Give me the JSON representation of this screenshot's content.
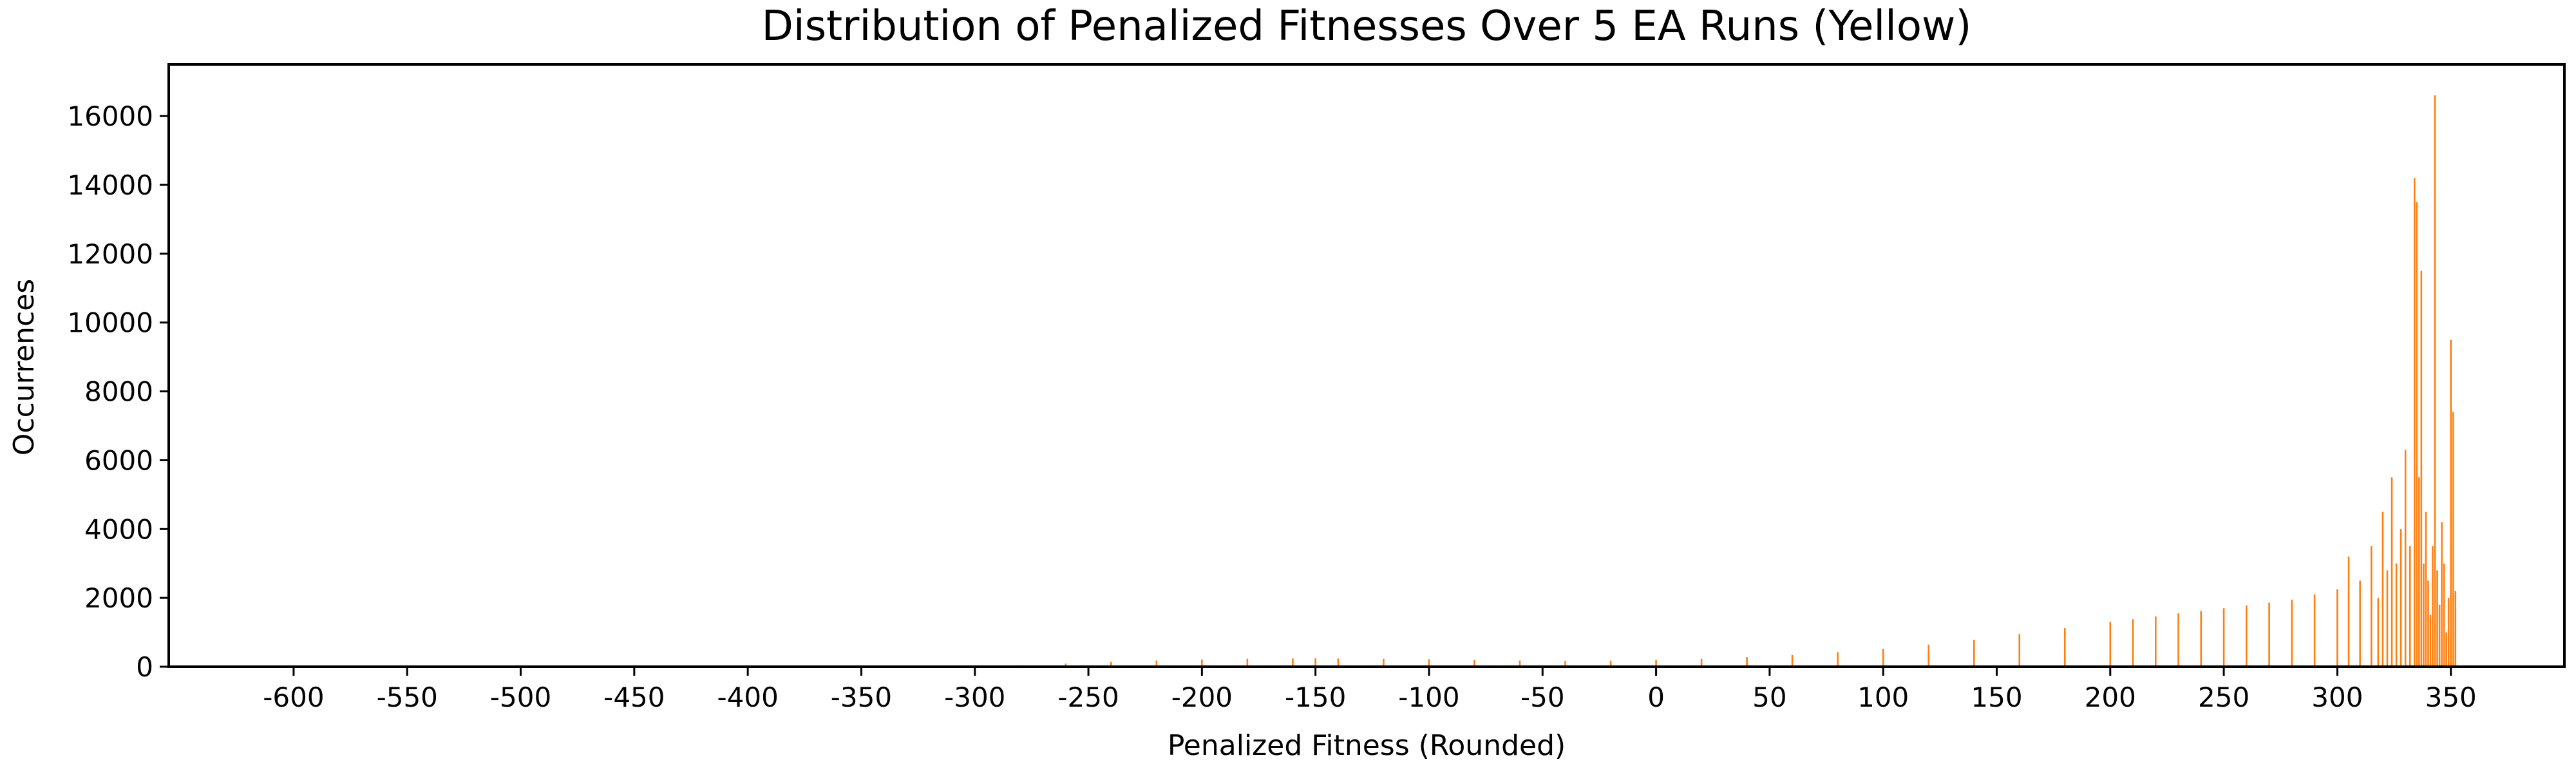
{
  "chart_data": {
    "type": "bar",
    "title": "Distribution of Penalized Fitnesses Over 5 EA Runs (Yellow)",
    "xlabel": "Penalized Fitness (Rounded)",
    "ylabel": "Occurrences",
    "xlim": [
      -655,
      400
    ],
    "ylim": [
      0,
      17500
    ],
    "x_ticks": [
      -600,
      -550,
      -500,
      -450,
      -400,
      -350,
      -300,
      -250,
      -200,
      -150,
      -100,
      -50,
      0,
      50,
      100,
      150,
      200,
      250,
      300,
      350
    ],
    "x_tick_labels": [
      "-600",
      "-550",
      "-500",
      "-450",
      "-400",
      "-350",
      "-300",
      "-250",
      "-200",
      "-150",
      "-100",
      "-50",
      "0",
      "50",
      "100",
      "150",
      "200",
      "250",
      "300",
      "350"
    ],
    "y_ticks": [
      0,
      2000,
      4000,
      6000,
      8000,
      10000,
      12000,
      14000,
      16000
    ],
    "y_tick_labels": [
      "0",
      "2000",
      "4000",
      "6000",
      "8000",
      "10000",
      "12000",
      "14000",
      "16000"
    ],
    "grid": false,
    "bar_color": "#ff7f0e",
    "series": [
      {
        "x": [
          -300,
          -280,
          -260,
          -240,
          -220,
          -200,
          -180,
          -160,
          -150,
          -140,
          -120,
          -100,
          -80,
          -60,
          -40,
          -20,
          0,
          20,
          40,
          60,
          80,
          100,
          120,
          140,
          160,
          180,
          200,
          210,
          220,
          230,
          240,
          250,
          260,
          270,
          280,
          290,
          300,
          305,
          310,
          315,
          318,
          320,
          322,
          324,
          326,
          328,
          330,
          332,
          334,
          335,
          336,
          337,
          338,
          339,
          340,
          341,
          342,
          343,
          344,
          345,
          346,
          347,
          348,
          349,
          350,
          351,
          352
        ],
        "values": [
          10,
          40,
          90,
          140,
          180,
          210,
          230,
          240,
          245,
          240,
          230,
          215,
          195,
          180,
          170,
          175,
          200,
          230,
          280,
          340,
          420,
          520,
          640,
          780,
          950,
          1120,
          1300,
          1380,
          1460,
          1550,
          1620,
          1700,
          1780,
          1860,
          1950,
          2100,
          2250,
          3200,
          2500,
          3500,
          2000,
          4500,
          2800,
          5500,
          3000,
          4000,
          6300,
          3500,
          14200,
          13500,
          5500,
          11500,
          3000,
          4500,
          2500,
          1500,
          3500,
          16600,
          2800,
          1800,
          4200,
          3000,
          1000,
          2000,
          9500,
          7400,
          2200
        ]
      }
    ]
  }
}
